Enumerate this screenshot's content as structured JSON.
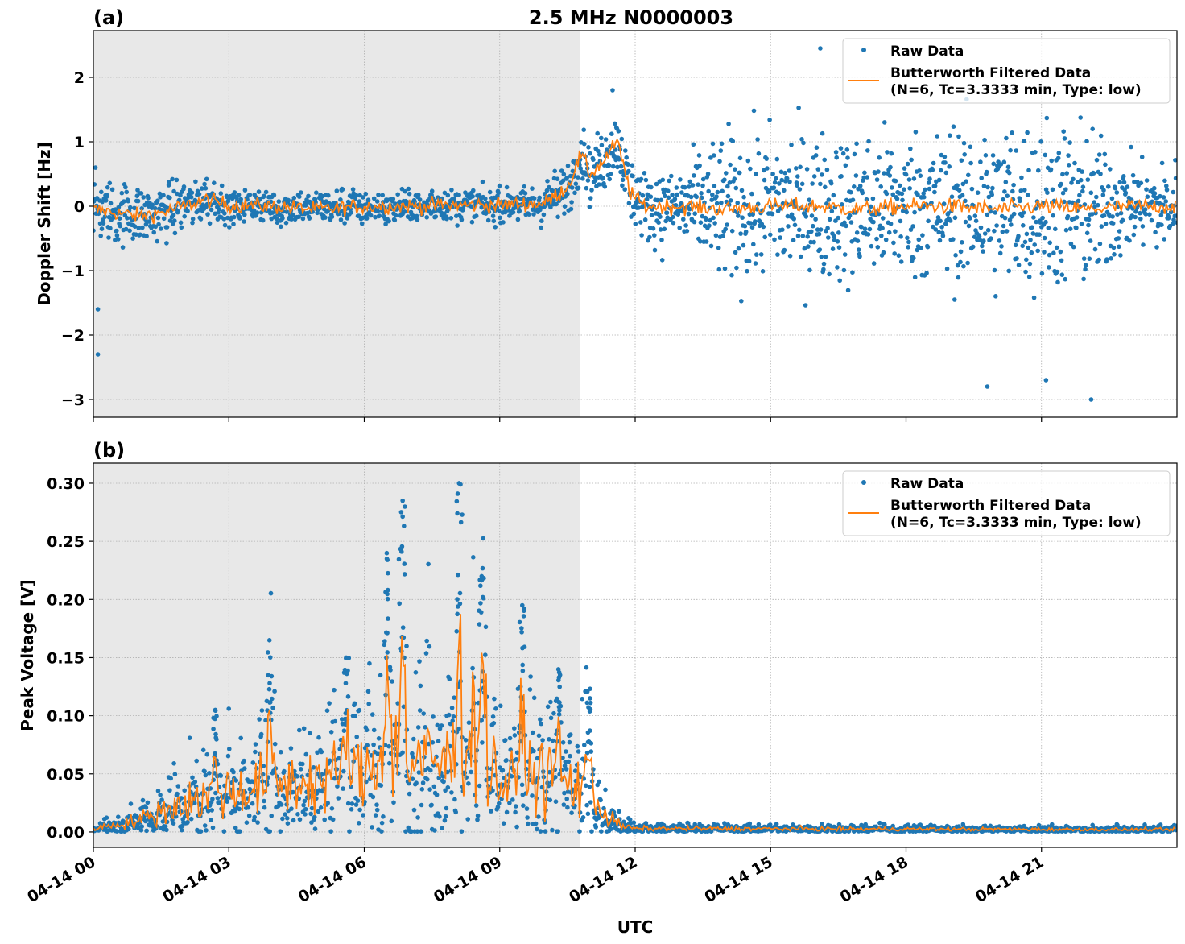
{
  "title": "2.5 MHz N0000003",
  "xlabel": "UTC",
  "colors": {
    "raw": "#1f77b4",
    "filtered": "#ff7f0e",
    "shade": "#e8e8e8",
    "grid": "#b0b0b0"
  },
  "legend": {
    "raw": "Raw Data",
    "filtered_line1": "Butterworth Filtered Data",
    "filtered_line2": "(N=6, Tc=3.3333 min, Type: low)",
    "placement": "upper right"
  },
  "x_axis": {
    "unit": "hours UTC on 04-14",
    "xlim": [
      0,
      24
    ],
    "ticks": [
      0,
      3,
      6,
      9,
      12,
      15,
      18,
      21
    ],
    "tick_labels": [
      "04-14 00",
      "04-14 03",
      "04-14 06",
      "04-14 09",
      "04-14 12",
      "04-14 15",
      "04-14 18",
      "04-14 21"
    ]
  },
  "chart_data": [
    {
      "type": "scatter+line",
      "panel_label": "(a)",
      "ylabel": "Doppler Shift [Hz]",
      "ylim": [
        -3.275,
        2.725
      ],
      "yticks": [
        -3,
        -2,
        -1,
        0,
        1,
        2
      ],
      "ytick_labels": [
        "−3",
        "−2",
        "−1",
        "0",
        "1",
        "2"
      ],
      "grid": true,
      "shaded_night_hours": [
        0,
        10.77
      ],
      "filtered_knots": [
        [
          0,
          -0.05
        ],
        [
          1,
          -0.15
        ],
        [
          1.5,
          -0.1
        ],
        [
          2,
          0
        ],
        [
          2.5,
          0.1
        ],
        [
          3,
          0.02
        ],
        [
          4,
          0
        ],
        [
          5,
          -0.05
        ],
        [
          6,
          0
        ],
        [
          7,
          0
        ],
        [
          8,
          0.02
        ],
        [
          9,
          0.02
        ],
        [
          10,
          0.05
        ],
        [
          10.5,
          0.3
        ],
        [
          10.8,
          0.8
        ],
        [
          11,
          0.5
        ],
        [
          11.3,
          0.7
        ],
        [
          11.6,
          1.0
        ],
        [
          11.9,
          0.2
        ],
        [
          12.2,
          0
        ],
        [
          13,
          0
        ],
        [
          14,
          -0.05
        ],
        [
          15,
          0
        ],
        [
          16,
          0
        ],
        [
          17,
          -0.05
        ],
        [
          18,
          0
        ],
        [
          19,
          0
        ],
        [
          20,
          -0.05
        ],
        [
          21,
          0
        ],
        [
          22,
          -0.05
        ],
        [
          23,
          0
        ],
        [
          24,
          0
        ]
      ],
      "raw_spread_knots": [
        [
          0,
          0.3
        ],
        [
          2,
          0.25
        ],
        [
          3,
          0.15
        ],
        [
          9,
          0.15
        ],
        [
          10,
          0.2
        ],
        [
          11.5,
          0.3
        ],
        [
          12,
          0.3
        ],
        [
          13,
          0.4
        ],
        [
          14,
          0.7
        ],
        [
          16,
          0.7
        ],
        [
          18,
          0.7
        ],
        [
          20,
          0.8
        ],
        [
          22,
          0.8
        ],
        [
          23,
          0.4
        ],
        [
          24,
          0.4
        ]
      ],
      "raw_extremes": [
        [
          0.1,
          -2.3
        ],
        [
          0.1,
          -1.6
        ],
        [
          16.1,
          2.45
        ],
        [
          22.1,
          -3.0
        ],
        [
          19.8,
          -2.8
        ],
        [
          21.1,
          -2.7
        ],
        [
          11.5,
          1.8
        ]
      ]
    },
    {
      "type": "scatter+line",
      "panel_label": "(b)",
      "ylabel": "Peak Voltage [V]",
      "ylim": [
        -0.0132,
        0.3173
      ],
      "yticks": [
        0,
        0.05,
        0.1,
        0.15,
        0.2,
        0.25,
        0.3
      ],
      "ytick_labels": [
        "0.00",
        "0.05",
        "0.10",
        "0.15",
        "0.20",
        "0.25",
        "0.30"
      ],
      "grid": true,
      "shaded_night_hours": [
        0,
        10.77
      ],
      "filtered_knots": [
        [
          0,
          0.003
        ],
        [
          1,
          0.01
        ],
        [
          2,
          0.025
        ],
        [
          3,
          0.035
        ],
        [
          4,
          0.04
        ],
        [
          5,
          0.045
        ],
        [
          6,
          0.05
        ],
        [
          6.5,
          0.07
        ],
        [
          7,
          0.06
        ],
        [
          8,
          0.06
        ],
        [
          8.5,
          0.09
        ],
        [
          9,
          0.04
        ],
        [
          10,
          0.05
        ],
        [
          10.5,
          0.04
        ],
        [
          11,
          0.04
        ],
        [
          11.3,
          0.015
        ],
        [
          11.7,
          0.005
        ],
        [
          12,
          0.003
        ],
        [
          24,
          0.002
        ]
      ],
      "raw_spikes": [
        [
          2.7,
          0.105
        ],
        [
          3.9,
          0.165
        ],
        [
          5.6,
          0.15
        ],
        [
          6.5,
          0.235
        ],
        [
          6.85,
          0.285
        ],
        [
          8.1,
          0.3
        ],
        [
          8.6,
          0.22
        ],
        [
          9.5,
          0.195
        ],
        [
          10.3,
          0.14
        ],
        [
          11.0,
          0.115
        ]
      ]
    }
  ]
}
